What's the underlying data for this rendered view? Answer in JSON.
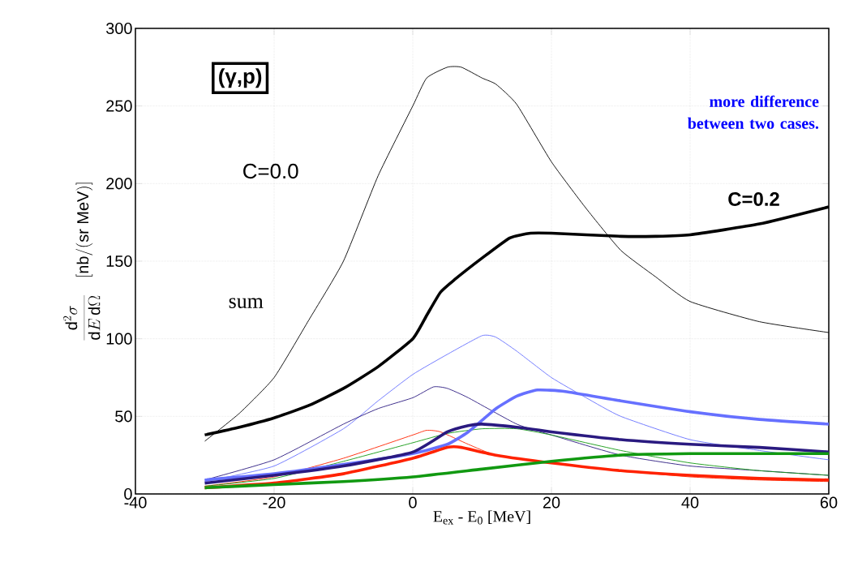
{
  "chart_data": {
    "type": "line",
    "xlabel": "E$_{ex}$ - E$_{0}$ [MeV]",
    "ylabel": "\\frac{\\mathrm{d}^2\\sigma}{\\mathrm{d}E\\,\\mathrm{d}\\Omega}\\quad[\\mathrm{nb/(sr\\ MeV)}]",
    "xlim": [
      -40,
      60
    ],
    "ylim": [
      0,
      300
    ],
    "xticks": [
      -40,
      -20,
      0,
      20,
      40,
      60
    ],
    "yticks": [
      0,
      50,
      100,
      150,
      200,
      250,
      300
    ],
    "grid": true,
    "marker": "none",
    "line_style": "solid",
    "annotations": [
      "(γ,p)",
      "C=0.0",
      "sum",
      "C=0.2",
      "more difference between two cases."
    ],
    "series": [
      {
        "color": "#000000",
        "x": [
          -30,
          -25,
          -20,
          -15,
          -10,
          -5,
          0,
          2,
          5,
          7,
          10,
          12,
          15,
          20,
          25,
          30,
          35,
          40,
          50,
          60
        ],
        "values": [
          34,
          52,
          75,
          112,
          150,
          205,
          250,
          268,
          275,
          275,
          268,
          264,
          251,
          214,
          184,
          157,
          140,
          124,
          111,
          104
        ]
      },
      {
        "color": "#6670ff",
        "x": [
          -30,
          -20,
          -10,
          -5,
          0,
          5,
          10,
          12,
          15,
          20,
          25,
          30,
          40,
          50,
          60
        ],
        "values": [
          8,
          18,
          42,
          60,
          77,
          90,
          102,
          101,
          92,
          75,
          62,
          50,
          35,
          28,
          22
        ]
      },
      {
        "color": "#2a1a80",
        "x": [
          -30,
          -20,
          -10,
          -5,
          0,
          3,
          5,
          8,
          15,
          20,
          30,
          40,
          50,
          60
        ],
        "values": [
          9,
          22,
          45,
          55,
          62,
          69,
          68,
          62,
          45,
          38,
          25,
          18,
          15,
          12
        ]
      },
      {
        "color": "#ff2200",
        "x": [
          -30,
          -20,
          -10,
          0,
          2,
          4,
          8,
          12,
          20,
          30,
          40,
          50,
          60
        ],
        "values": [
          5,
          11,
          23,
          38,
          41,
          40,
          32,
          25,
          20,
          15,
          11,
          9,
          8
        ]
      },
      {
        "color": "#119911",
        "x": [
          -30,
          -20,
          -10,
          0,
          5,
          10,
          15,
          20,
          30,
          40,
          50,
          60
        ],
        "values": [
          5,
          10,
          21,
          33,
          39,
          42,
          42,
          38,
          28,
          20,
          15,
          12
        ]
      },
      {
        "color": "#000000",
        "x": [
          -30,
          -25,
          -20,
          -15,
          -10,
          -5,
          0,
          2,
          4,
          6,
          10,
          14,
          17,
          20,
          30,
          35,
          40,
          50,
          60
        ],
        "values": [
          38,
          43,
          49,
          57,
          68,
          82,
          100,
          115,
          130,
          138,
          152,
          165,
          168,
          168,
          166,
          166,
          167,
          174,
          185
        ]
      },
      {
        "color": "#6670ff",
        "x": [
          -30,
          -20,
          -10,
          0,
          5,
          8,
          12,
          15,
          18,
          22,
          30,
          40,
          50,
          60
        ],
        "values": [
          9,
          13,
          19,
          26,
          32,
          40,
          55,
          63,
          67,
          66,
          60,
          53,
          48,
          45
        ]
      },
      {
        "color": "#2a1a80",
        "x": [
          -30,
          -20,
          -10,
          0,
          5,
          8,
          10,
          15,
          20,
          30,
          40,
          50,
          60
        ],
        "values": [
          7,
          12,
          18,
          27,
          40,
          44,
          45,
          43,
          40,
          35,
          32,
          30,
          27
        ]
      },
      {
        "color": "#ff2200",
        "x": [
          -30,
          -20,
          -10,
          0,
          5,
          7,
          12,
          20,
          30,
          40,
          50,
          60
        ],
        "values": [
          4,
          7,
          13,
          23,
          30,
          30,
          25,
          20,
          15,
          12,
          10,
          9
        ]
      },
      {
        "color": "#119911",
        "x": [
          -30,
          -20,
          -10,
          0,
          10,
          20,
          30,
          40,
          50,
          60
        ],
        "values": [
          4,
          6,
          8,
          11,
          16,
          21,
          25,
          26,
          26,
          26
        ]
      }
    ]
  }
}
